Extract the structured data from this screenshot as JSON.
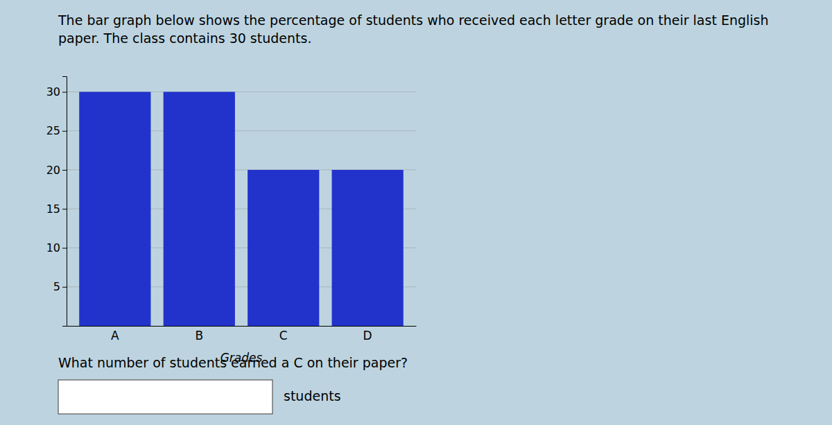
{
  "chart_data": {
    "type": "bar",
    "title": "The bar graph below shows the percentage of students who received each letter grade on their last English paper. The class contains 30 students.",
    "xlabel": "Grades",
    "categories": [
      "A",
      "B",
      "C",
      "D"
    ],
    "values": [
      30,
      30,
      20,
      20
    ],
    "color": "#2233CC",
    "ylim": [
      0,
      32
    ],
    "yticks": [
      5,
      10,
      15,
      20,
      25,
      30
    ],
    "grid": true,
    "annotations": [
      "What number of students earned a C on their paper?",
      "students"
    ]
  }
}
